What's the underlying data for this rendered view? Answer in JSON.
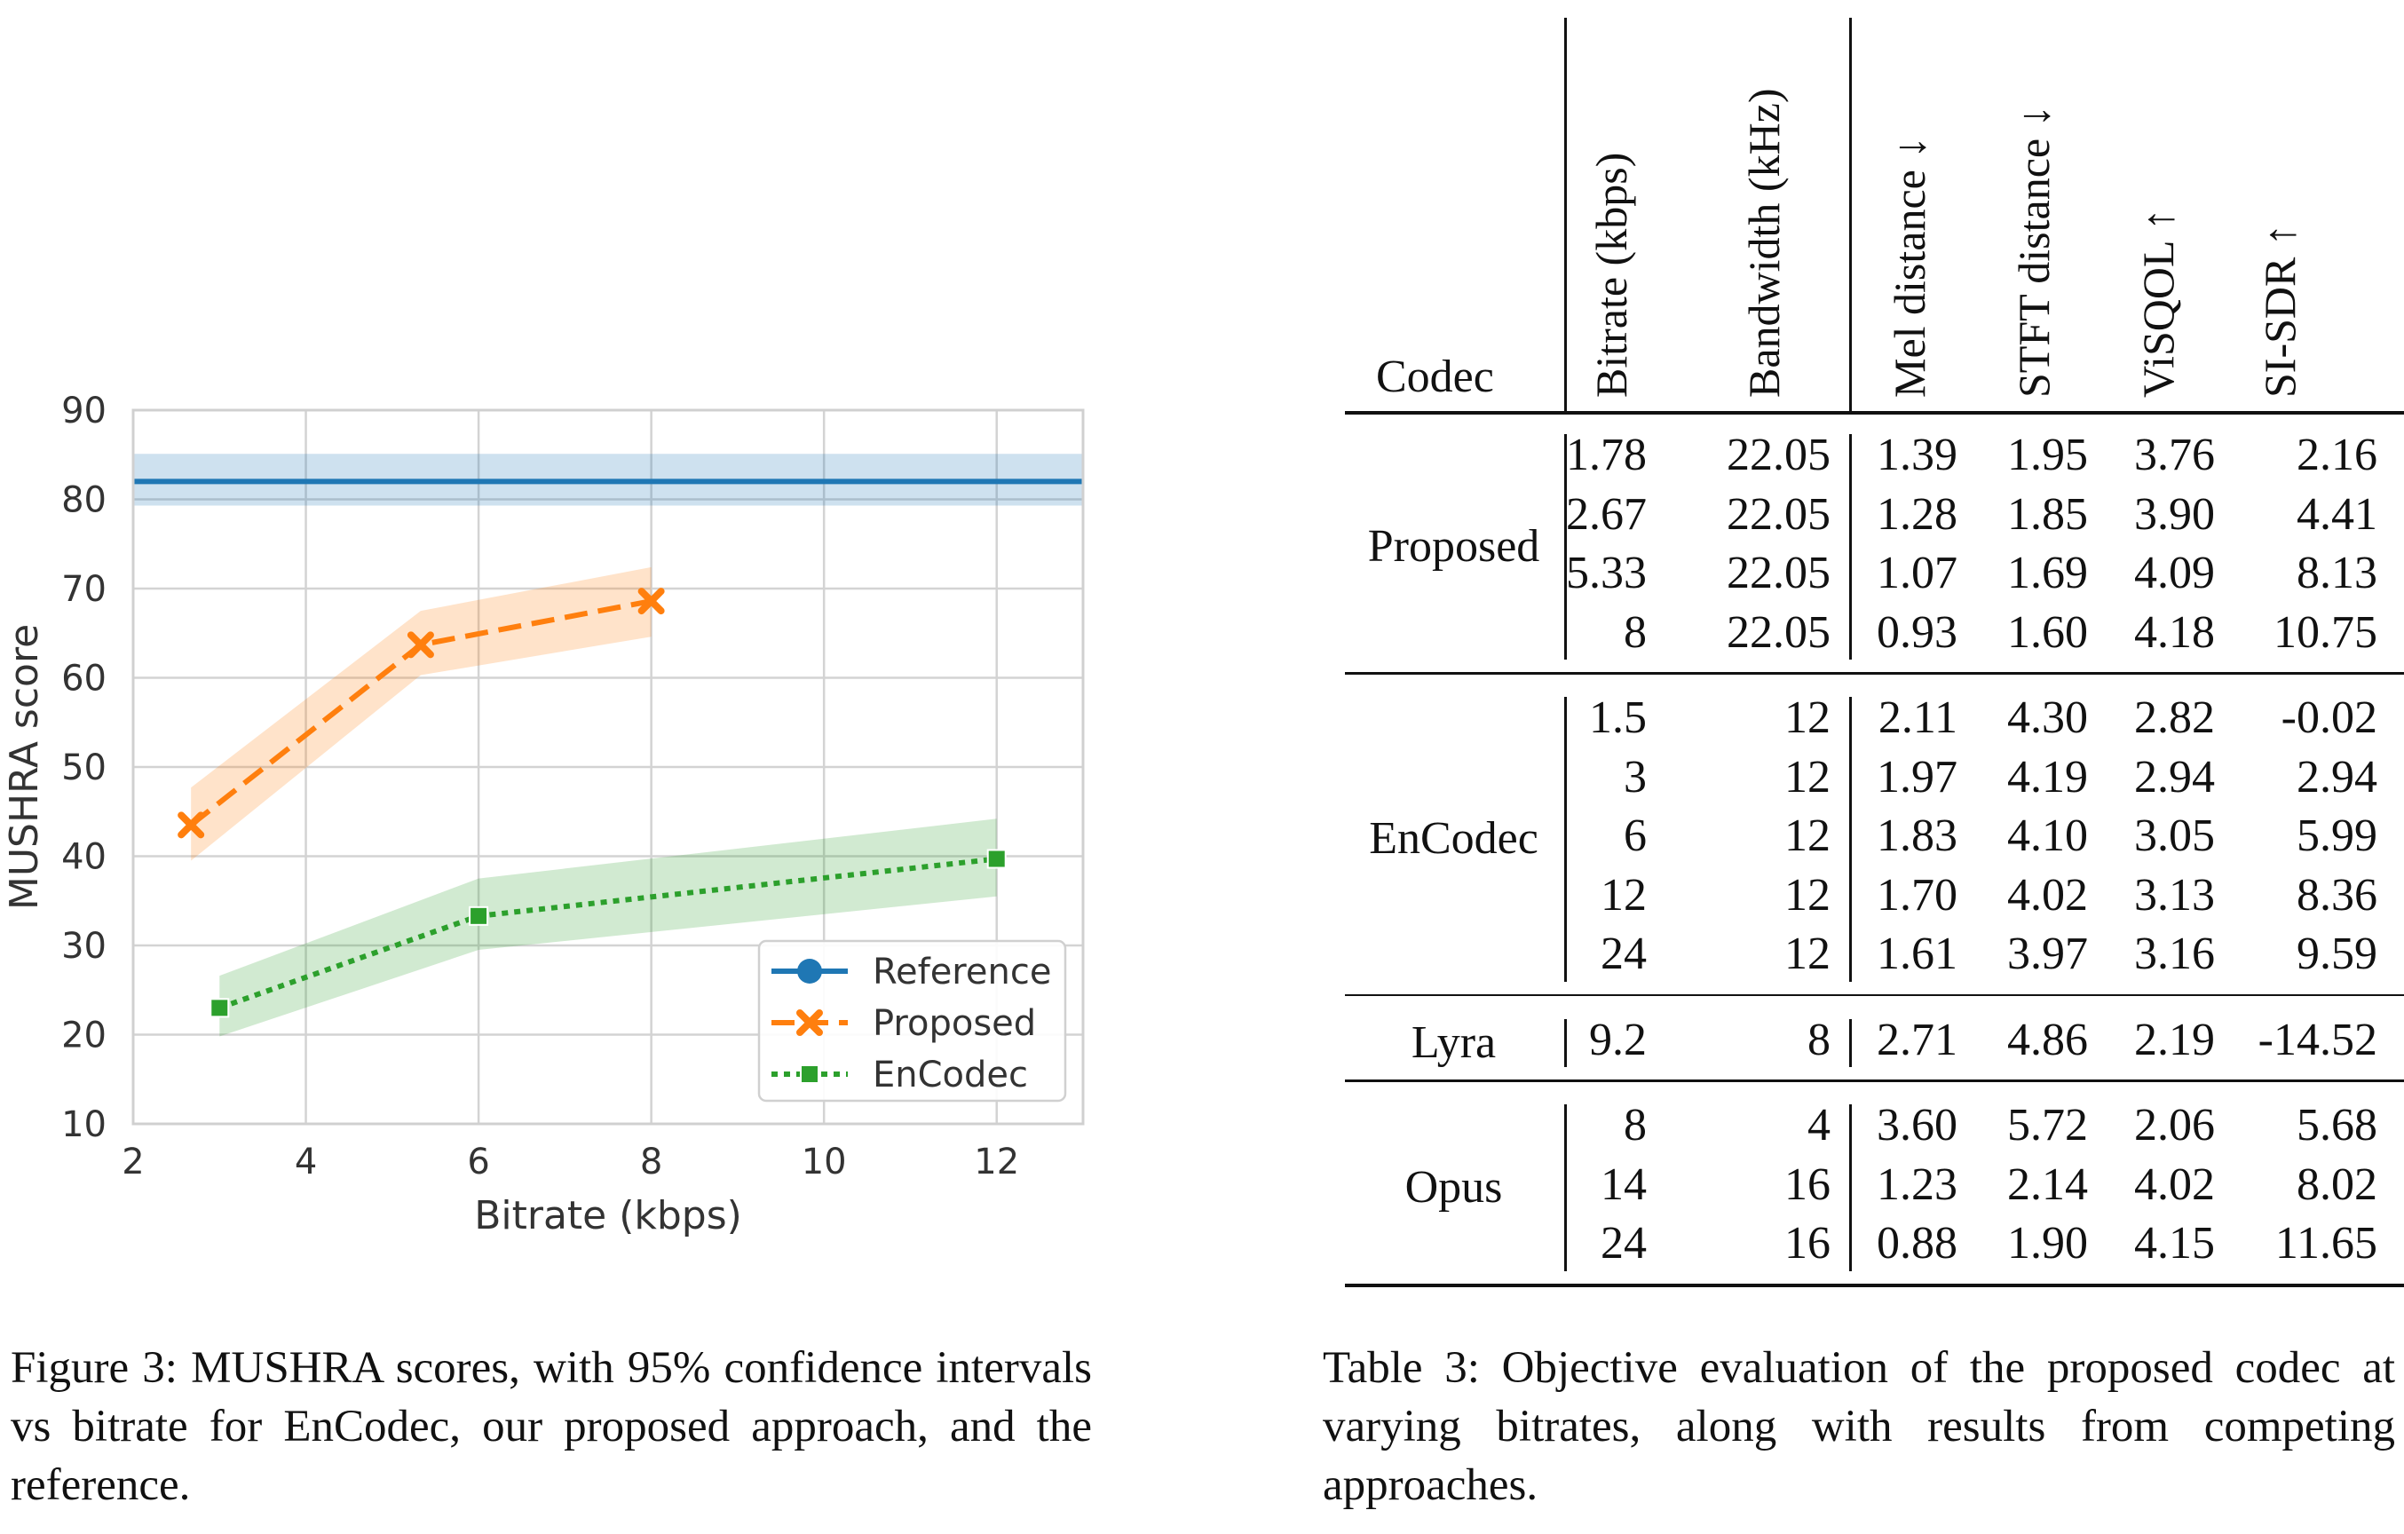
{
  "figure": {
    "caption": "Figure 3: MUSHRA scores, with 95% confidence intervals vs bitrate for EnCodec, our proposed approach, and the reference."
  },
  "chart_data": {
    "type": "line",
    "xlabel": "Bitrate (kbps)",
    "ylabel": "MUSHRA score",
    "xlim": [
      2,
      13
    ],
    "ylim": [
      10,
      90
    ],
    "xticks": [
      2,
      4,
      6,
      8,
      10,
      12
    ],
    "yticks": [
      10,
      20,
      30,
      40,
      50,
      60,
      70,
      80,
      90
    ],
    "grid": true,
    "legend_position": "bottom-right",
    "series": [
      {
        "name": "Reference",
        "color": "#1f77b4",
        "linestyle": "solid",
        "marker": "circle",
        "x": [
          2,
          13
        ],
        "y": [
          82,
          82
        ],
        "ci_low": [
          79.3,
          79.3
        ],
        "ci_high": [
          85.1,
          85.1
        ],
        "constant": true
      },
      {
        "name": "Proposed",
        "color": "#ff7f0e",
        "linestyle": "dashed",
        "marker": "x",
        "x": [
          2.67,
          5.33,
          8
        ],
        "y": [
          43.5,
          63.7,
          68.6
        ],
        "ci_low": [
          39.5,
          60.3,
          64.6
        ],
        "ci_high": [
          47.7,
          67.5,
          72.4
        ]
      },
      {
        "name": "EnCodec",
        "color": "#2ca02c",
        "linestyle": "dotted",
        "marker": "square",
        "x": [
          3,
          6,
          12
        ],
        "y": [
          23,
          33.3,
          39.7
        ],
        "ci_low": [
          19.8,
          29.5,
          35.5
        ],
        "ci_high": [
          26.6,
          37.5,
          44.2
        ]
      }
    ]
  },
  "table": {
    "caption": "Table 3: Objective evaluation of the proposed codec at varying bitrates, along with results from competing approaches.",
    "codec_header": "Codec",
    "rotated_headers": [
      "Bitrate (kbps)",
      "Bandwidth (kHz)",
      "Mel distance ↓",
      "STFT distance ↓",
      "ViSQOL ↑",
      "SI-SDR ↑"
    ],
    "groups": [
      {
        "codec": "Proposed",
        "rows": [
          [
            "1.78",
            "22.05",
            "1.39",
            "1.95",
            "3.76",
            "2.16"
          ],
          [
            "2.67",
            "22.05",
            "1.28",
            "1.85",
            "3.90",
            "4.41"
          ],
          [
            "5.33",
            "22.05",
            "1.07",
            "1.69",
            "4.09",
            "8.13"
          ],
          [
            "8",
            "22.05",
            "0.93",
            "1.60",
            "4.18",
            "10.75"
          ]
        ]
      },
      {
        "codec": "EnCodec",
        "rows": [
          [
            "1.5",
            "12",
            "2.11",
            "4.30",
            "2.82",
            "-0.02"
          ],
          [
            "3",
            "12",
            "1.97",
            "4.19",
            "2.94",
            "2.94"
          ],
          [
            "6",
            "12",
            "1.83",
            "4.10",
            "3.05",
            "5.99"
          ],
          [
            "12",
            "12",
            "1.70",
            "4.02",
            "3.13",
            "8.36"
          ],
          [
            "24",
            "12",
            "1.61",
            "3.97",
            "3.16",
            "9.59"
          ]
        ]
      },
      {
        "codec": "Lyra",
        "rows": [
          [
            "9.2",
            "8",
            "2.71",
            "4.86",
            "2.19",
            "-14.52"
          ]
        ]
      },
      {
        "codec": "Opus",
        "rows": [
          [
            "8",
            "4",
            "3.60",
            "5.72",
            "2.06",
            "5.68"
          ],
          [
            "14",
            "16",
            "1.23",
            "2.14",
            "4.02",
            "8.02"
          ],
          [
            "24",
            "16",
            "0.88",
            "1.90",
            "4.15",
            "11.65"
          ]
        ]
      }
    ]
  }
}
